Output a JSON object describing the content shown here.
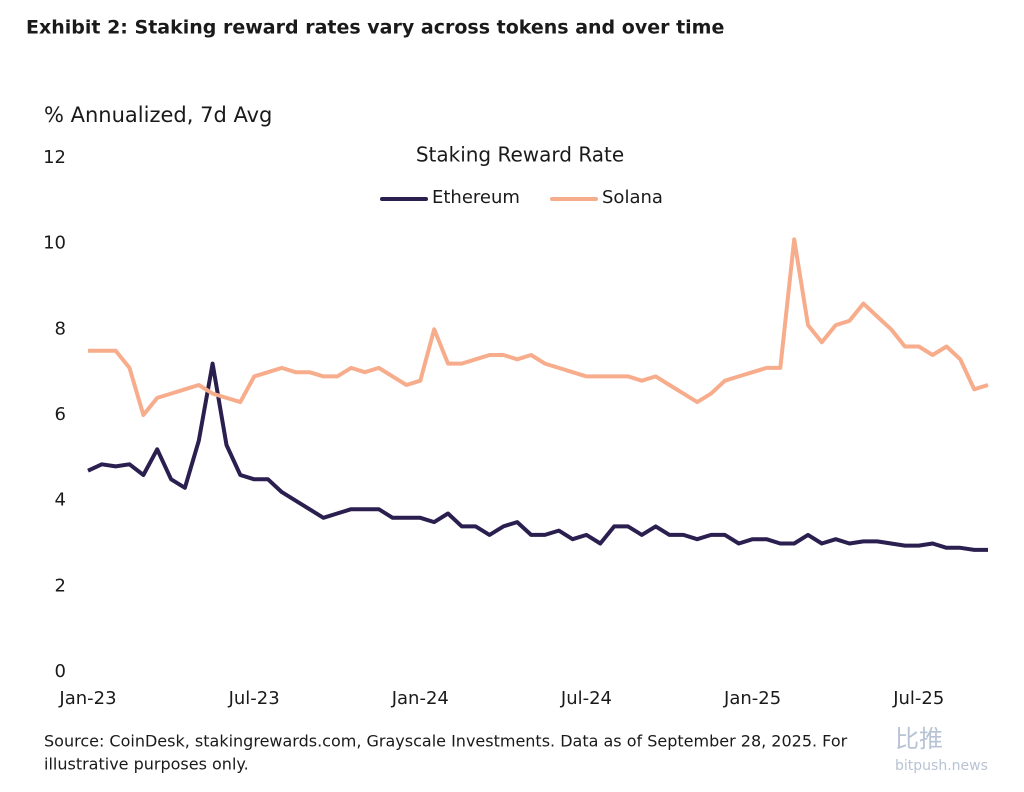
{
  "header": {
    "title": "Exhibit 2: Staking reward rates vary across tokens and over time"
  },
  "chart_data": {
    "type": "line",
    "title": "Staking Reward Rate",
    "y_label": "% Annualized, 7d Avg",
    "categories": [
      "Jan-23",
      null,
      null,
      null,
      null,
      null,
      null,
      null,
      null,
      null,
      null,
      null,
      "Jul-23",
      null,
      null,
      null,
      null,
      null,
      null,
      null,
      null,
      null,
      null,
      null,
      "Jan-24",
      null,
      null,
      null,
      null,
      null,
      null,
      null,
      null,
      null,
      null,
      null,
      "Jul-24",
      null,
      null,
      null,
      null,
      null,
      null,
      null,
      null,
      null,
      null,
      null,
      "Jan-25",
      null,
      null,
      null,
      null,
      null,
      null,
      null,
      null,
      null,
      null,
      null,
      "Jul-25",
      null,
      null,
      null,
      null,
      null
    ],
    "series": [
      {
        "name": "Ethereum",
        "color": "#2a1f4f",
        "values": [
          4.7,
          4.85,
          4.8,
          4.85,
          4.6,
          5.2,
          4.5,
          4.3,
          5.4,
          7.2,
          5.3,
          4.6,
          4.5,
          4.5,
          4.2,
          4.0,
          3.8,
          3.6,
          3.7,
          3.8,
          3.8,
          3.8,
          3.6,
          3.6,
          3.6,
          3.5,
          3.7,
          3.4,
          3.4,
          3.2,
          3.4,
          3.5,
          3.2,
          3.2,
          3.3,
          3.1,
          3.2,
          3.0,
          3.4,
          3.4,
          3.2,
          3.4,
          3.2,
          3.2,
          3.1,
          3.2,
          3.2,
          3.0,
          3.1,
          3.1,
          3.0,
          3.0,
          3.2,
          3.0,
          3.1,
          3.0,
          3.05,
          3.05,
          3.0,
          2.95,
          2.95,
          3.0,
          2.9,
          2.9,
          2.85,
          2.85
        ]
      },
      {
        "name": "Solana",
        "color": "#f7ac8c",
        "values": [
          7.5,
          7.5,
          7.5,
          7.1,
          6.0,
          6.4,
          6.5,
          6.6,
          6.7,
          6.5,
          6.4,
          6.3,
          6.9,
          7.0,
          7.1,
          7.0,
          7.0,
          6.9,
          6.9,
          7.1,
          7.0,
          7.1,
          6.9,
          6.7,
          6.8,
          8.0,
          7.2,
          7.2,
          7.3,
          7.4,
          7.4,
          7.3,
          7.4,
          7.2,
          7.1,
          7.0,
          6.9,
          6.9,
          6.9,
          6.9,
          6.8,
          6.9,
          6.7,
          6.5,
          6.3,
          6.5,
          6.8,
          6.9,
          7.0,
          7.1,
          7.1,
          10.1,
          8.1,
          7.7,
          8.1,
          8.2,
          8.6,
          8.3,
          8.0,
          7.6,
          7.6,
          7.4,
          7.6,
          7.3,
          6.6,
          6.7
        ]
      }
    ],
    "ylim": [
      0,
      12
    ],
    "yticks": [
      0,
      2,
      4,
      6,
      8,
      10,
      12
    ],
    "grid": false
  },
  "footer": {
    "source": "Source: CoinDesk, stakingrewards.com, Grayscale Investments. Data as of September 28, 2025. For",
    "source_2": "illustrative purposes only.",
    "watermark": "比推",
    "watermark_2": "bitpush.news"
  }
}
